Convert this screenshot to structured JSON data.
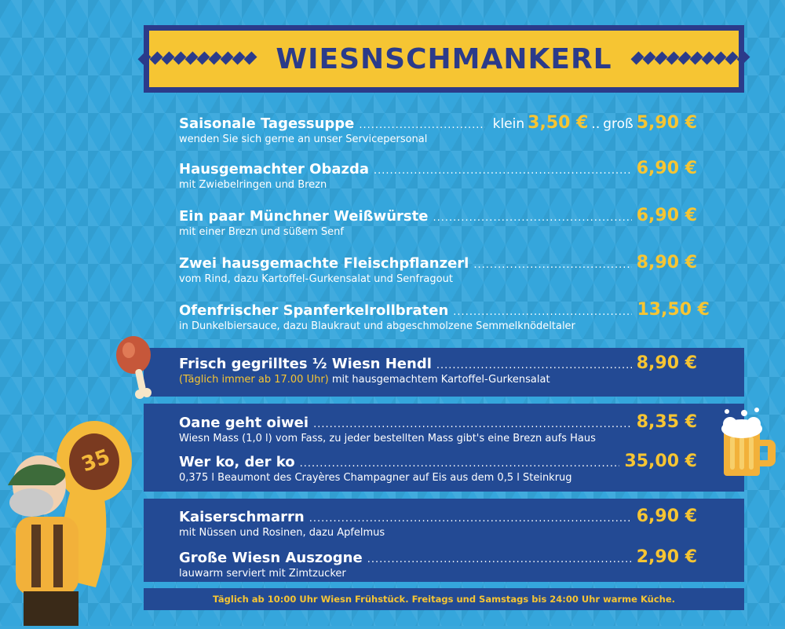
{
  "header": {
    "title": "WIESNSCHMANKERL"
  },
  "items": [
    {
      "name": "Saisonale Tagessuppe",
      "desc": "wenden Sie sich gerne an unser Servicepersonal",
      "small_label": "klein",
      "small_price": "3,50 €",
      "sep": "..",
      "large_label": "groß",
      "price": "5,90 €"
    },
    {
      "name": "Hausgemachter Obazda",
      "desc": "mit Zwiebelringen und Brezn",
      "price": "6,90 €"
    },
    {
      "name": "Ein paar Münchner Weißwürste",
      "desc": "mit einer Brezn und süßem Senf",
      "price": "6,90 €"
    },
    {
      "name": "Zwei hausgemachte Fleischpflanzerl",
      "desc": "vom Rind, dazu Kartoffel-Gurkensalat und Senfragout",
      "price": "8,90 €"
    },
    {
      "name": "Ofenfrischer Spanferkelrollbraten",
      "desc": "in Dunkelbiersauce, dazu Blaukraut und abgeschmolzene Semmelknödeltaler",
      "price": "13,50 €"
    },
    {
      "name": "Frisch gegrilltes ½ Wiesn Hendl",
      "desc_highlight": "(Täglich immer ab 17.00 Uhr)",
      "desc": "mit hausgemachtem Kartoffel-Gurkensalat",
      "price": "8,90 €"
    },
    {
      "name": "Oane geht oiwei",
      "desc": "Wiesn Mass (1,0 l) vom Fass, zu jeder bestellten Mass gibt's eine Brezn aufs Haus",
      "price": "8,35 €"
    },
    {
      "name": "Wer ko, der ko",
      "desc": "0,375 l Beaumont des Crayères Champagner auf Eis aus dem 0,5 l Steinkrug",
      "price": "35,00 €"
    },
    {
      "name": "Kaiserschmarrn",
      "desc": "mit Nüssen und Rosinen, dazu Apfelmus",
      "price": "6,90 €"
    },
    {
      "name": "Große Wiesn Auszogne",
      "desc": "lauwarm serviert mit Zimtzucker",
      "price": "2,90 €"
    }
  ],
  "footer": {
    "text": "Täglich ab 10:00 Uhr Wiesn Frühstück. Freitags und Samstags bis 24:00 Uhr warme Küche."
  },
  "illustrations": {
    "tuba_number": "35"
  },
  "colors": {
    "background": "#35a6dc",
    "navy": "#2b3b8a",
    "panel": "#234a94",
    "yellow": "#f6c533"
  }
}
